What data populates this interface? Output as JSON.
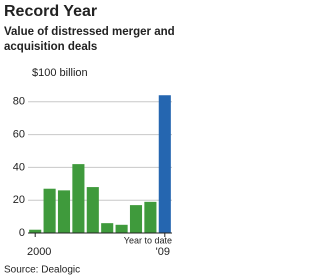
{
  "chart_data": {
    "type": "bar",
    "title": "Record Year",
    "subtitle": [
      "Value of distressed merger and",
      "acquisition deals"
    ],
    "categories": [
      "2000",
      null,
      null,
      null,
      null,
      null,
      null,
      null,
      null,
      "'09"
    ],
    "values": [
      2,
      27,
      26,
      42,
      28,
      6,
      5,
      17,
      19,
      84
    ],
    "colors": [
      "#3f9a3c",
      "#3f9a3c",
      "#3f9a3c",
      "#3f9a3c",
      "#3f9a3c",
      "#3f9a3c",
      "#3f9a3c",
      "#3f9a3c",
      "#3f9a3c",
      "#2566b0"
    ],
    "annotation": "Year to date",
    "source": "Source: Dealogic",
    "ylim": [
      0,
      100
    ],
    "yticks": [
      0,
      20,
      40,
      60,
      80,
      {
        "value": 100,
        "label": "$100 billion"
      }
    ],
    "grid": true
  }
}
